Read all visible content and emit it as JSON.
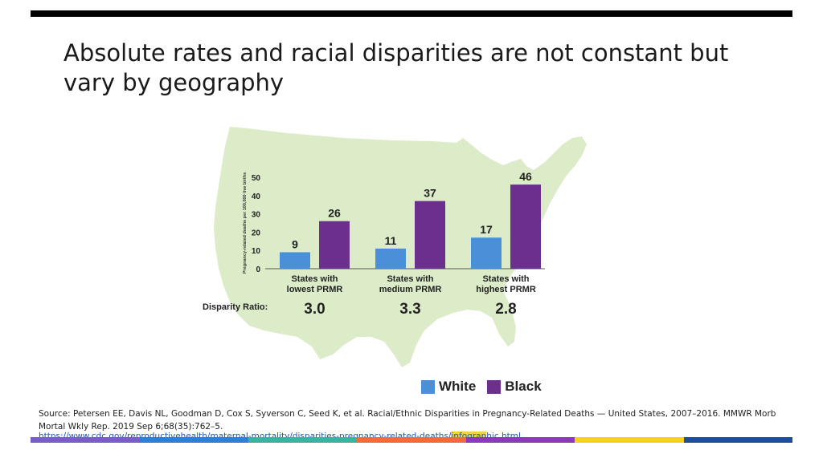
{
  "slide": {
    "title": "Absolute rates and racial disparities are not constant but vary by geography"
  },
  "chart_data": {
    "type": "bar",
    "ylabel": "Pregnancy-related deaths per 100,000 live births",
    "ylim": [
      0,
      50
    ],
    "yticks": [
      0,
      10,
      20,
      30,
      40,
      50
    ],
    "categories": [
      [
        "States with",
        "lowest PRMR"
      ],
      [
        "States with",
        "medium PRMR"
      ],
      [
        "States with",
        "highest PRMR"
      ]
    ],
    "series": [
      {
        "name": "White",
        "color": "#4a90d9",
        "values": [
          9,
          11,
          17
        ]
      },
      {
        "name": "Black",
        "color": "#6b2f8e",
        "values": [
          26,
          37,
          46
        ]
      }
    ],
    "disparity_label": "Disparity Ratio:",
    "disparity_ratios": [
      "3.0",
      "3.3",
      "2.8"
    ],
    "legend_position": "bottom-right",
    "grid": false
  },
  "legend": {
    "white": "White",
    "black": "Black"
  },
  "source": {
    "text": "Source: Petersen EE, Davis NL, Goodman D, Cox S, Syverson C, Seed K, et al. Racial/Ethnic Disparities in Pregnancy-Related Deaths — United States, 2007–2016. MMWR Morb Mortal Wkly Rep. 2019 Sep 6;68(35):762–5.",
    "link_main": "https://www.cdc.gov/reproductivehealth/maternal-mortality/disparities-pregnancy-related-deaths/",
    "link_highlight": "infograp",
    "link_tail": "hic.html"
  },
  "colors": {
    "map": "#dcecc8",
    "footer": [
      "#7a5ec8",
      "#2e7fd6",
      "#3bb3a0",
      "#f06c3c",
      "#8a3cb8",
      "#f5d417",
      "#1f4e9e"
    ]
  }
}
